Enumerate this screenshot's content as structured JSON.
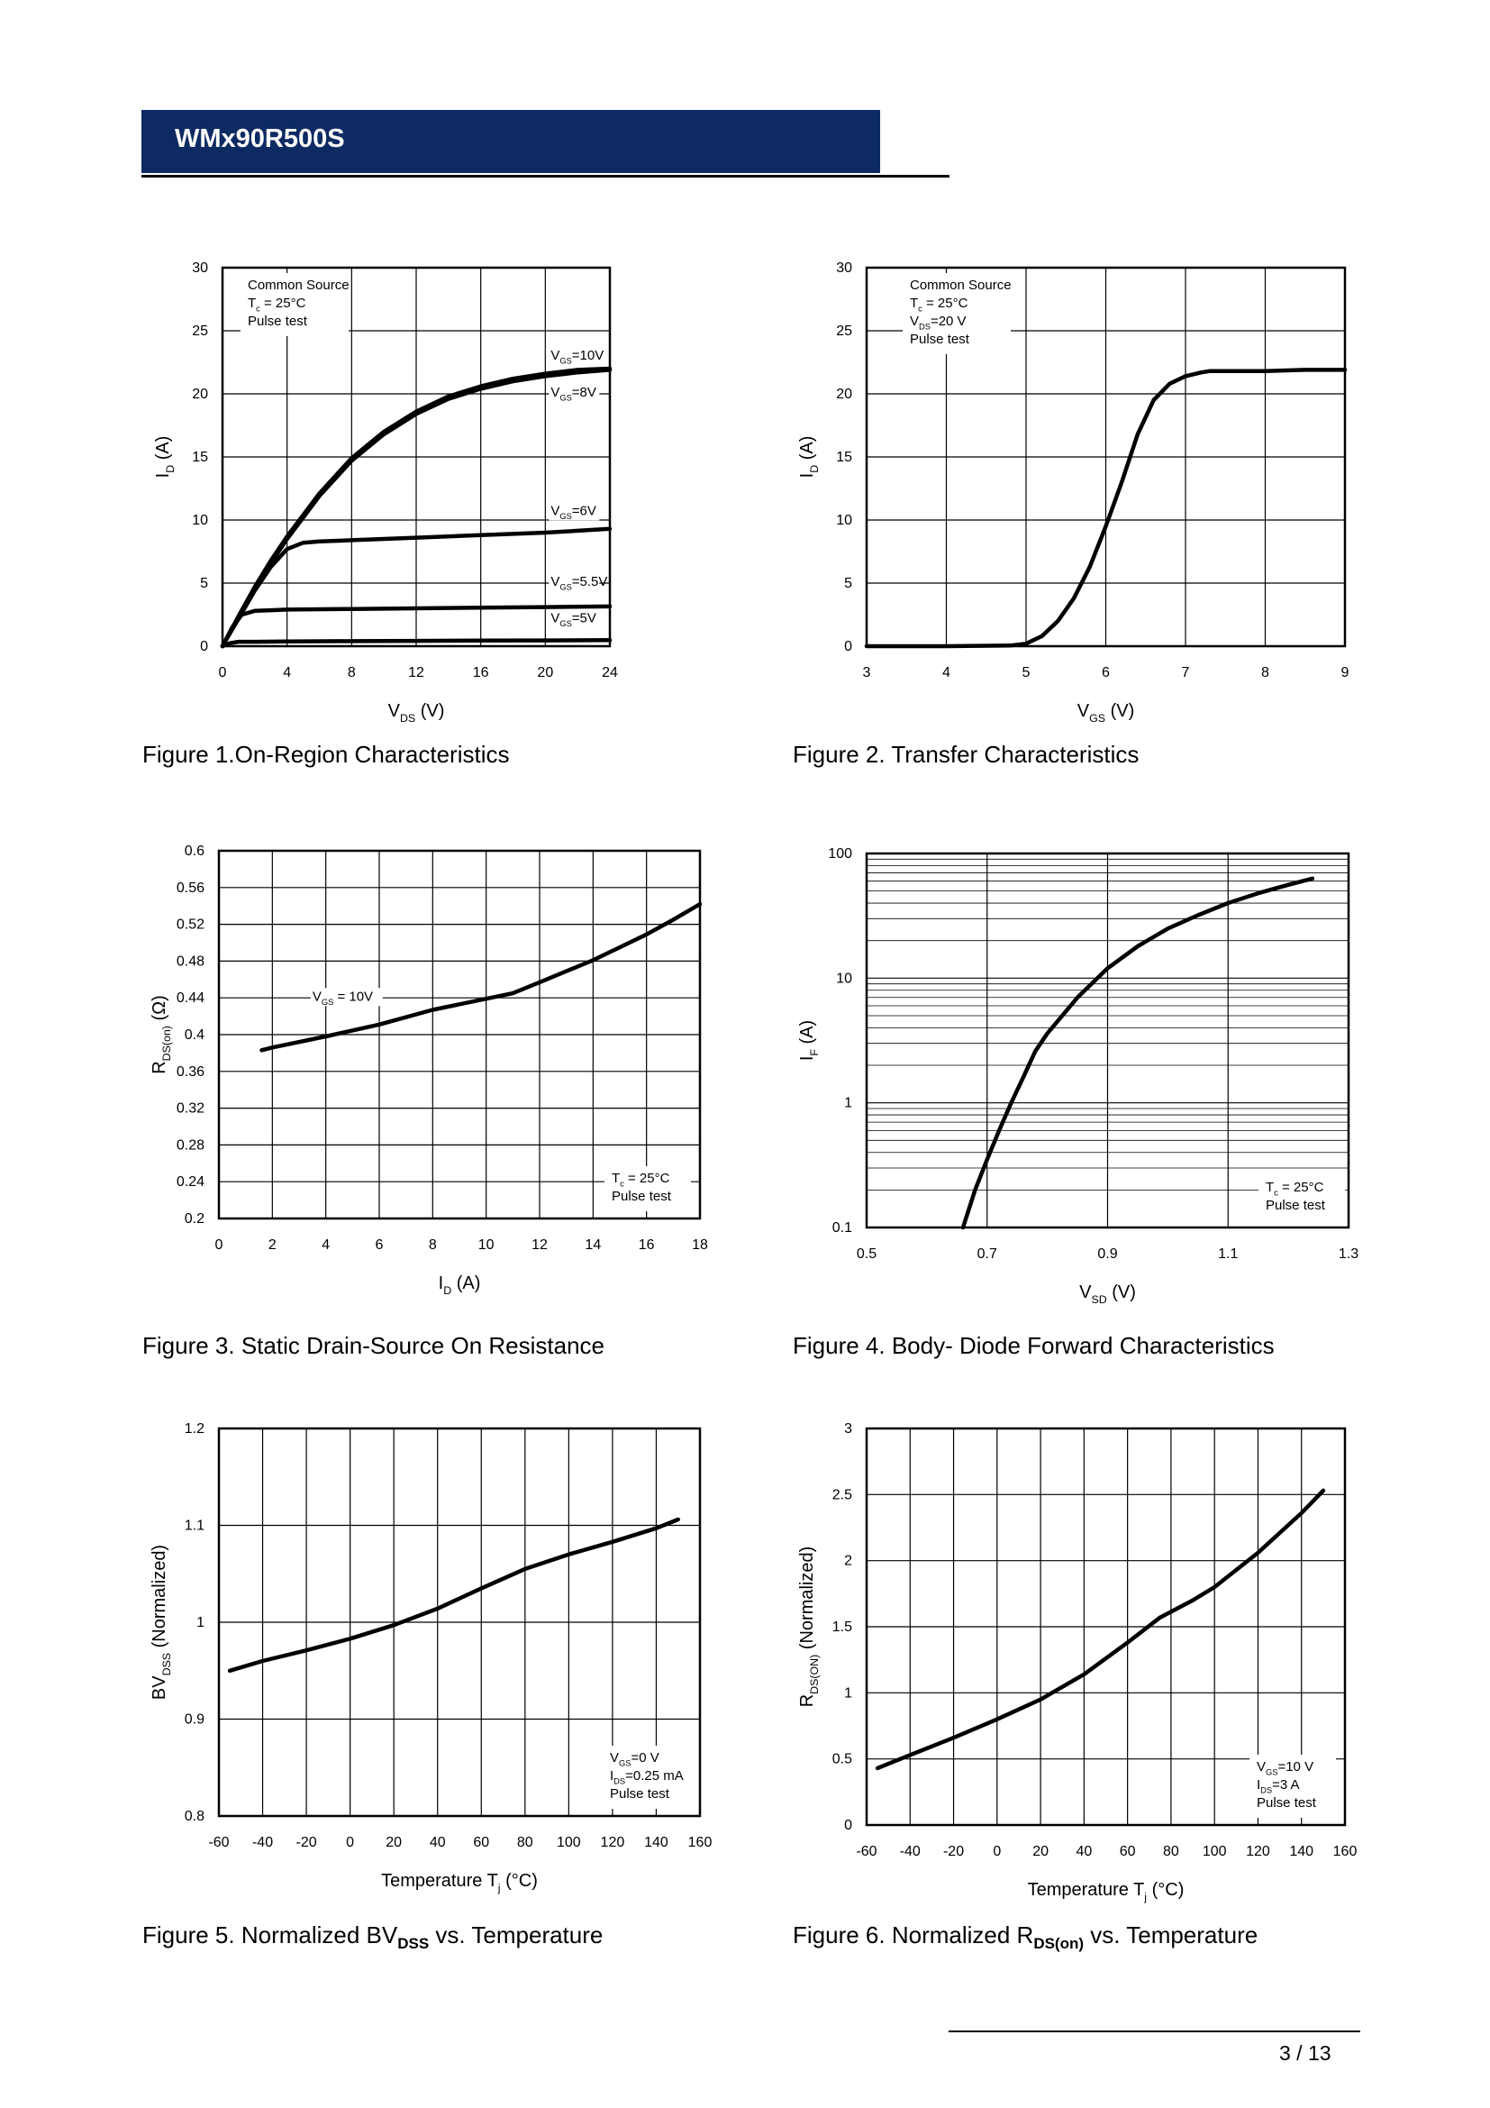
{
  "header": {
    "title": "WMx90R500S"
  },
  "footer": {
    "page": "3 / 13"
  },
  "chart_data": [
    {
      "id": "fig1",
      "type": "line",
      "title": "Figure 1.On-Region Characteristics",
      "xlabel": "V",
      "xlabel_sub": "DS",
      "xlabel_suffix": " (V)",
      "ylabel": "I",
      "ylabel_sub": "D",
      "ylabel_suffix": " (A)",
      "xlim": [
        0,
        24
      ],
      "ylim": [
        0,
        30
      ],
      "xticks": [
        0,
        4,
        8,
        12,
        16,
        20,
        24
      ],
      "yticks": [
        0,
        5,
        10,
        15,
        20,
        25,
        30
      ],
      "annotation": [
        {
          "main": "Common Source"
        },
        {
          "main": "T",
          "sub": "c",
          "rest": " = 25°C"
        },
        {
          "main": "Pulse test"
        }
      ],
      "series": [
        {
          "name": "VGS=10V",
          "label_main": "V",
          "label_sub": "GS",
          "label_rest": "=10V",
          "x": [
            0,
            1,
            2,
            3,
            4,
            6,
            8,
            10,
            12,
            14,
            16,
            18,
            20,
            22,
            24
          ],
          "y": [
            0,
            2.4,
            4.7,
            6.8,
            8.7,
            12.1,
            14.9,
            17.0,
            18.6,
            19.8,
            20.6,
            21.2,
            21.6,
            21.9,
            22.0
          ]
        },
        {
          "name": "VGS=8V",
          "label_main": "V",
          "label_sub": "GS",
          "label_rest": "=8V",
          "x": [
            0,
            1,
            2,
            3,
            4,
            6,
            8,
            10,
            12,
            14,
            16,
            18,
            20,
            22,
            24
          ],
          "y": [
            0,
            2.3,
            4.6,
            6.6,
            8.5,
            11.9,
            14.7,
            16.8,
            18.4,
            19.6,
            20.4,
            21.0,
            21.4,
            21.7,
            21.9
          ]
        },
        {
          "name": "VGS=6V",
          "label_main": "V",
          "label_sub": "GS",
          "label_rest": "=6V",
          "x": [
            0,
            1,
            2,
            3,
            4,
            5,
            6,
            8,
            12,
            16,
            20,
            24
          ],
          "y": [
            0,
            2.2,
            4.4,
            6.3,
            7.7,
            8.2,
            8.3,
            8.4,
            8.6,
            8.8,
            9.0,
            9.3
          ]
        },
        {
          "name": "VGS=5.5V",
          "label_main": "V",
          "label_sub": "GS",
          "label_rest": "=5.5V",
          "x": [
            0,
            0.6,
            1.2,
            2,
            3,
            4,
            8,
            12,
            16,
            20,
            24
          ],
          "y": [
            0,
            1.5,
            2.5,
            2.8,
            2.85,
            2.9,
            2.95,
            3.0,
            3.05,
            3.1,
            3.15
          ]
        },
        {
          "name": "VGS=5V",
          "label_main": "V",
          "label_sub": "GS",
          "label_rest": "=5V",
          "x": [
            0,
            0.5,
            1,
            2,
            4,
            8,
            12,
            16,
            20,
            24
          ],
          "y": [
            0,
            0.25,
            0.35,
            0.35,
            0.38,
            0.4,
            0.42,
            0.44,
            0.46,
            0.48
          ]
        }
      ]
    },
    {
      "id": "fig2",
      "type": "line",
      "title": "Figure 2. Transfer Characteristics",
      "xlabel": "V",
      "xlabel_sub": "GS",
      "xlabel_suffix": " (V)",
      "ylabel": "I",
      "ylabel_sub": "D",
      "ylabel_suffix": " (A)",
      "xlim": [
        3,
        9
      ],
      "ylim": [
        0,
        30
      ],
      "xticks": [
        3,
        4,
        5,
        6,
        7,
        8,
        9
      ],
      "yticks": [
        0,
        5,
        10,
        15,
        20,
        25,
        30
      ],
      "annotation": [
        {
          "main": "Common Source"
        },
        {
          "main": "T",
          "sub": "c",
          "rest": " = 25°C"
        },
        {
          "main": "V",
          "sub": "DS",
          "rest": "=20 V"
        },
        {
          "main": "Pulse test"
        }
      ],
      "series": [
        {
          "name": "ID",
          "x": [
            3,
            4,
            4.8,
            5.0,
            5.2,
            5.4,
            5.6,
            5.8,
            6.0,
            6.2,
            6.4,
            6.6,
            6.8,
            7.0,
            7.2,
            7.3,
            7.5,
            8,
            8.5,
            9
          ],
          "y": [
            0,
            0,
            0.05,
            0.2,
            0.8,
            2.0,
            3.8,
            6.3,
            9.5,
            13.0,
            16.8,
            19.5,
            20.8,
            21.4,
            21.7,
            21.8,
            21.8,
            21.8,
            21.9,
            21.9
          ]
        }
      ]
    },
    {
      "id": "fig3",
      "type": "line",
      "title": "Figure 3. Static Drain-Source On Resistance",
      "xlabel": "I",
      "xlabel_sub": "D",
      "xlabel_suffix": " (A)",
      "ylabel": "R",
      "ylabel_sub": "DS(on)",
      "ylabel_suffix": " (Ω)",
      "xlim": [
        0,
        18
      ],
      "ylim": [
        0.2,
        0.6
      ],
      "xticks": [
        0,
        2,
        4,
        6,
        8,
        10,
        12,
        14,
        16,
        18
      ],
      "yticks": [
        0.2,
        0.24,
        0.28,
        0.32,
        0.36,
        0.4,
        0.44,
        0.48,
        0.52,
        0.56,
        0.6
      ],
      "annotation": [
        {
          "main": "T",
          "sub": "c",
          "rest": " = 25°C"
        },
        {
          "main": "Pulse test"
        }
      ],
      "curve_label": {
        "main": "V",
        "sub": "GS",
        "rest": " = 10V"
      },
      "series": [
        {
          "name": "VGS=10V",
          "x": [
            1.6,
            2,
            4,
            6,
            8,
            10,
            11,
            12,
            14,
            15,
            16,
            17,
            18
          ],
          "y": [
            0.383,
            0.386,
            0.398,
            0.411,
            0.427,
            0.439,
            0.445,
            0.457,
            0.481,
            0.495,
            0.509,
            0.525,
            0.542
          ]
        }
      ]
    },
    {
      "id": "fig4",
      "type": "line",
      "yscale": "log",
      "title": "Figure 4. Body- Diode Forward Characteristics",
      "xlabel": "V",
      "xlabel_sub": "SD",
      "xlabel_suffix": " (V)",
      "ylabel": "I",
      "ylabel_sub": "F",
      "ylabel_suffix": " (A)",
      "xlim": [
        0.5,
        1.3
      ],
      "ylim": [
        0.1,
        100
      ],
      "xticks": [
        0.5,
        0.7,
        0.9,
        1.1,
        1.3
      ],
      "yticks": [
        0.1,
        1,
        10,
        100
      ],
      "ytick_labels": [
        "0.1",
        "1",
        "10",
        "100"
      ],
      "annotation": [
        {
          "main": "T",
          "sub": "c",
          "rest": " = 25°C"
        },
        {
          "main": "Pulse test"
        }
      ],
      "series": [
        {
          "name": "IF",
          "x": [
            0.66,
            0.68,
            0.7,
            0.72,
            0.74,
            0.76,
            0.78,
            0.8,
            0.85,
            0.9,
            0.95,
            1.0,
            1.05,
            1.1,
            1.15,
            1.2,
            1.24
          ],
          "y": [
            0.1,
            0.2,
            0.35,
            0.6,
            1.0,
            1.6,
            2.6,
            3.6,
            7.0,
            12.0,
            18.0,
            25.0,
            32.0,
            40.0,
            48.0,
            56.0,
            63.0
          ]
        }
      ]
    },
    {
      "id": "fig5",
      "type": "line",
      "title": "Figure 5. Normalized BV",
      "title_sub": "DSS",
      "title_suffix": " vs. Temperature",
      "xlabel": "Temperature T",
      "xlabel_sub": "j",
      "xlabel_suffix": " (°C)",
      "ylabel": "BV",
      "ylabel_sub": "DSS",
      "ylabel_suffix": " (Normalized)",
      "xlim": [
        -60,
        160
      ],
      "ylim": [
        0.8,
        1.2
      ],
      "xticks": [
        -60,
        -40,
        -20,
        0,
        20,
        40,
        60,
        80,
        100,
        120,
        140,
        160
      ],
      "yticks": [
        0.8,
        0.9,
        1,
        1.1,
        1.2
      ],
      "annotation": [
        {
          "main": "V",
          "sub": "GS",
          "rest": "=0 V"
        },
        {
          "main": "I",
          "sub": "DS",
          "rest": "=0.25 mA"
        },
        {
          "main": "Pulse test"
        }
      ],
      "series": [
        {
          "name": "BVDSS",
          "x": [
            -55,
            -40,
            -20,
            0,
            20,
            40,
            60,
            80,
            100,
            120,
            140,
            150
          ],
          "y": [
            0.95,
            0.96,
            0.971,
            0.983,
            0.997,
            1.014,
            1.035,
            1.055,
            1.07,
            1.083,
            1.097,
            1.106
          ]
        }
      ]
    },
    {
      "id": "fig6",
      "type": "line",
      "title": "Figure 6. Normalized R",
      "title_sub": "DS(on)",
      "title_suffix": " vs. Temperature",
      "xlabel": "Temperature T",
      "xlabel_sub": "j",
      "xlabel_suffix": " (°C)",
      "ylabel": "R",
      "ylabel_sub": "DS(ON)",
      "ylabel_suffix": " (Normalized)",
      "xlim": [
        -60,
        160
      ],
      "ylim": [
        0,
        3
      ],
      "xticks": [
        -60,
        -40,
        -20,
        0,
        20,
        40,
        60,
        80,
        100,
        120,
        140,
        160
      ],
      "yticks": [
        0,
        0.5,
        1,
        1.5,
        2,
        2.5,
        3
      ],
      "annotation": [
        {
          "main": "V",
          "sub": "GS",
          "rest": "=10 V"
        },
        {
          "main": "I",
          "sub": "DS",
          "rest": "=3 A"
        },
        {
          "main": "Pulse test"
        }
      ],
      "series": [
        {
          "name": "RDS(on)",
          "x": [
            -55,
            -40,
            -20,
            0,
            20,
            40,
            60,
            75,
            90,
            100,
            120,
            140,
            150
          ],
          "y": [
            0.43,
            0.53,
            0.66,
            0.8,
            0.95,
            1.14,
            1.38,
            1.57,
            1.7,
            1.8,
            2.06,
            2.36,
            2.53
          ]
        }
      ]
    }
  ]
}
